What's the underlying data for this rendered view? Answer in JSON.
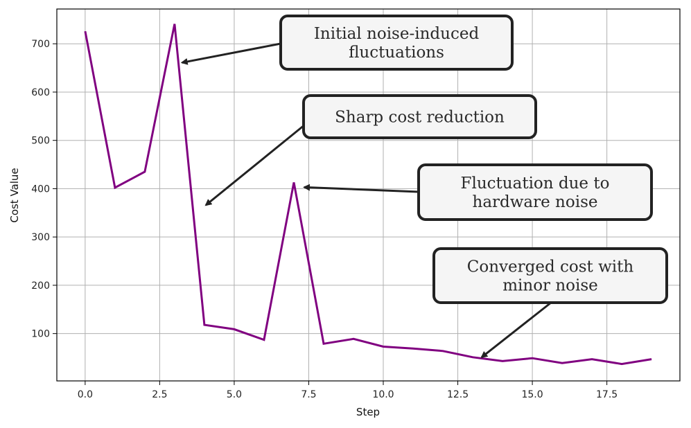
{
  "chart_data": {
    "type": "line",
    "title": "",
    "xlabel": "Step",
    "ylabel": "Cost Value",
    "xlim": [
      -0.95,
      19.95
    ],
    "ylim": [
      2,
      772
    ],
    "grid": true,
    "legend": "none",
    "xticks": [
      0,
      2.5,
      5,
      7.5,
      10,
      12.5,
      15,
      17.5
    ],
    "xtick_labels": [
      "0.0",
      "2.5",
      "5.0",
      "7.5",
      "10.0",
      "12.5",
      "15.0",
      "17.5"
    ],
    "yticks": [
      100,
      200,
      300,
      400,
      500,
      600,
      700
    ],
    "ytick_labels": [
      "100",
      "200",
      "300",
      "400",
      "500",
      "600",
      "700"
    ],
    "series": [
      {
        "name": "cost",
        "color": "#800080",
        "x": [
          0,
          1,
          2,
          3,
          4,
          5,
          6,
          7,
          8,
          9,
          10,
          11,
          12,
          13,
          14,
          15,
          16,
          17,
          18,
          19
        ],
        "y": [
          726,
          402,
          435,
          741,
          118,
          109,
          87,
          413,
          79,
          89,
          73,
          69,
          64,
          51,
          43,
          49,
          39,
          47,
          37,
          47
        ]
      }
    ],
    "annotations": [
      {
        "lines": [
          "Initial noise-induced",
          "fluctuations"
        ],
        "point": [
          3.25,
          661
        ]
      },
      {
        "lines": [
          "Sharp cost reduction"
        ],
        "point": [
          4.05,
          366
        ]
      },
      {
        "lines": [
          "Fluctuation due to",
          "hardware noise"
        ],
        "point": [
          7.35,
          403
        ]
      },
      {
        "lines": [
          "Converged cost with",
          "minor noise"
        ],
        "point": [
          13.3,
          51
        ]
      }
    ]
  }
}
